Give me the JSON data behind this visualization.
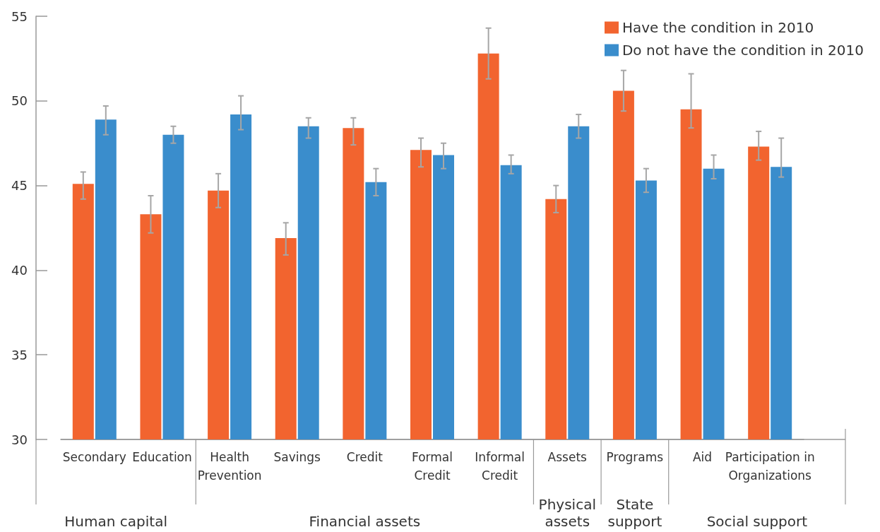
{
  "chart_data": {
    "type": "bar",
    "categories": [
      "Secondary",
      "Education",
      "Health\nPrevention",
      "Savings",
      "Credit",
      "Formal\nCredit",
      "Informal\nCredit",
      "Assets",
      "Programs",
      "Aid",
      "Participation in\nOrganizations"
    ],
    "series": [
      {
        "name": "Have the condition in 2010",
        "color": "#f2642f",
        "values": [
          45.1,
          43.3,
          44.7,
          41.9,
          48.4,
          47.1,
          52.8,
          44.2,
          50.6,
          49.5,
          47.3
        ],
        "errors": [
          [
            44.2,
            45.8
          ],
          [
            42.2,
            44.4
          ],
          [
            43.7,
            45.7
          ],
          [
            40.9,
            42.8
          ],
          [
            47.4,
            49.0
          ],
          [
            46.1,
            47.8
          ],
          [
            51.3,
            54.3
          ],
          [
            43.4,
            45.0
          ],
          [
            49.4,
            51.8
          ],
          [
            48.4,
            51.6
          ],
          [
            46.5,
            48.2
          ]
        ]
      },
      {
        "name": "Do not have the condition in 2010",
        "color": "#3a8dcc",
        "values": [
          48.9,
          48.0,
          49.2,
          48.5,
          45.2,
          46.8,
          46.2,
          48.5,
          45.3,
          46.0,
          46.1
        ],
        "errors": [
          [
            48.0,
            49.7
          ],
          [
            47.5,
            48.5
          ],
          [
            48.3,
            50.3
          ],
          [
            47.8,
            49.0
          ],
          [
            44.4,
            46.0
          ],
          [
            46.0,
            47.5
          ],
          [
            45.7,
            46.8
          ],
          [
            47.8,
            49.2
          ],
          [
            44.6,
            46.0
          ],
          [
            45.4,
            46.8
          ],
          [
            45.5,
            47.8
          ]
        ]
      }
    ],
    "ylim": [
      30,
      55
    ],
    "yticks": [
      30,
      35,
      40,
      45,
      50,
      55
    ],
    "grid": false,
    "legend": "top right",
    "annotations": [
      "Human capital",
      "Financial assets",
      "Physical\nassets",
      "State\nsupport",
      "Social support"
    ]
  }
}
